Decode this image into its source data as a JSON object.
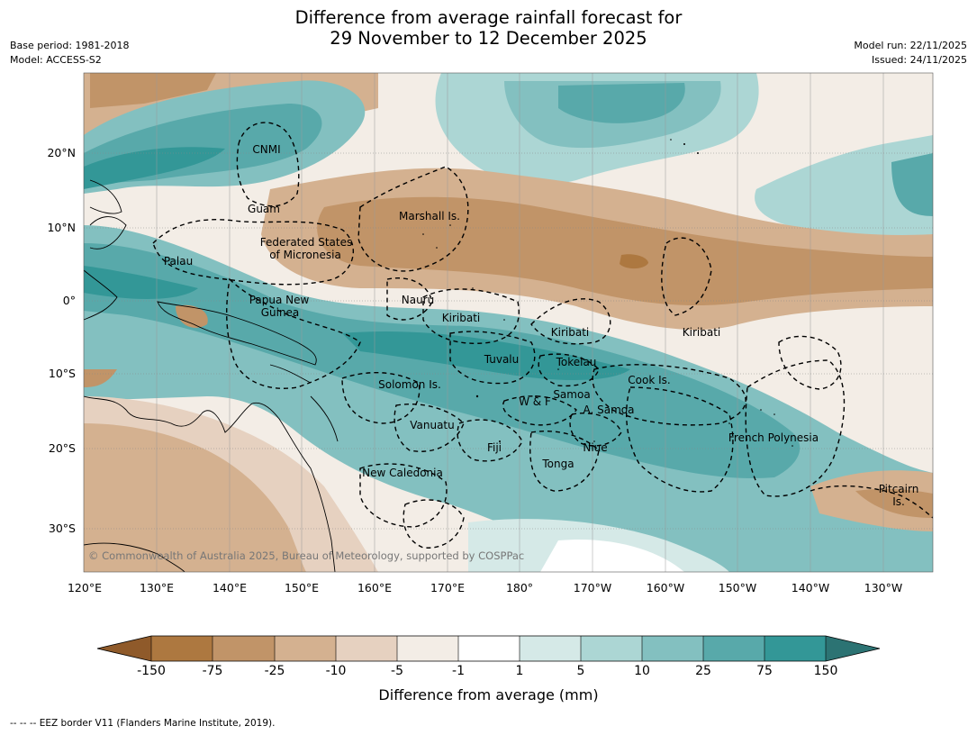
{
  "title": {
    "line1": "Difference from average rainfall forecast for",
    "line2": "29 November to 12 December 2025"
  },
  "meta": {
    "base_period": "Base period: 1981-2018",
    "model": "Model: ACCESS-S2",
    "model_run": "Model run: 22/11/2025",
    "issued": "Issued: 24/11/2025"
  },
  "axes": {
    "lon_ticks": [
      "120°E",
      "130°E",
      "140°E",
      "150°E",
      "160°E",
      "170°E",
      "180°",
      "170°W",
      "160°W",
      "150°W",
      "140°W",
      "130°W"
    ],
    "lat_ticks": [
      "20°N",
      "10°N",
      "0°",
      "10°S",
      "20°S",
      "30°S"
    ]
  },
  "places": [
    {
      "name": "CNMI"
    },
    {
      "name": "Guam"
    },
    {
      "name": "Marshall Is."
    },
    {
      "name": "Federated States"
    },
    {
      "name": "of Micronesia"
    },
    {
      "name": "Palau"
    },
    {
      "name": "Papua New"
    },
    {
      "name": "Guinea"
    },
    {
      "name": "Nauru"
    },
    {
      "name": "Kiribati"
    },
    {
      "name": "Kiribati"
    },
    {
      "name": "Kiribati"
    },
    {
      "name": "Tuvalu"
    },
    {
      "name": "Tokelau"
    },
    {
      "name": "Cook Is."
    },
    {
      "name": "Solomon Is."
    },
    {
      "name": "Samoa"
    },
    {
      "name": "W & F"
    },
    {
      "name": "A. Samoa"
    },
    {
      "name": "Vanuatu"
    },
    {
      "name": "Fiji"
    },
    {
      "name": "Niue"
    },
    {
      "name": "Tonga"
    },
    {
      "name": "French Polynesia"
    },
    {
      "name": "New Caledonia"
    },
    {
      "name": "Pitcairn"
    },
    {
      "name": "Is."
    }
  ],
  "copyright": "© Commonwealth of Australia 2025, Bureau of Meteorology, supported by COSPPac",
  "colorbar": {
    "title": "Difference from average (mm)",
    "labels": [
      "-150",
      "-75",
      "-25",
      "-10",
      "-5",
      "-1",
      "1",
      "5",
      "10",
      "25",
      "75",
      "150"
    ],
    "colors": [
      "#8f5a2a",
      "#ad7840",
      "#c19468",
      "#d4b190",
      "#e6d1c0",
      "#f3ede6",
      "#ffffff",
      "#d5e9e7",
      "#acd6d4",
      "#83c0c0",
      "#58a9aa",
      "#339797",
      "#2c7373"
    ]
  },
  "footnote": "--  --  -- EEZ border V11 (Flanders Marine Institute, 2019)."
}
